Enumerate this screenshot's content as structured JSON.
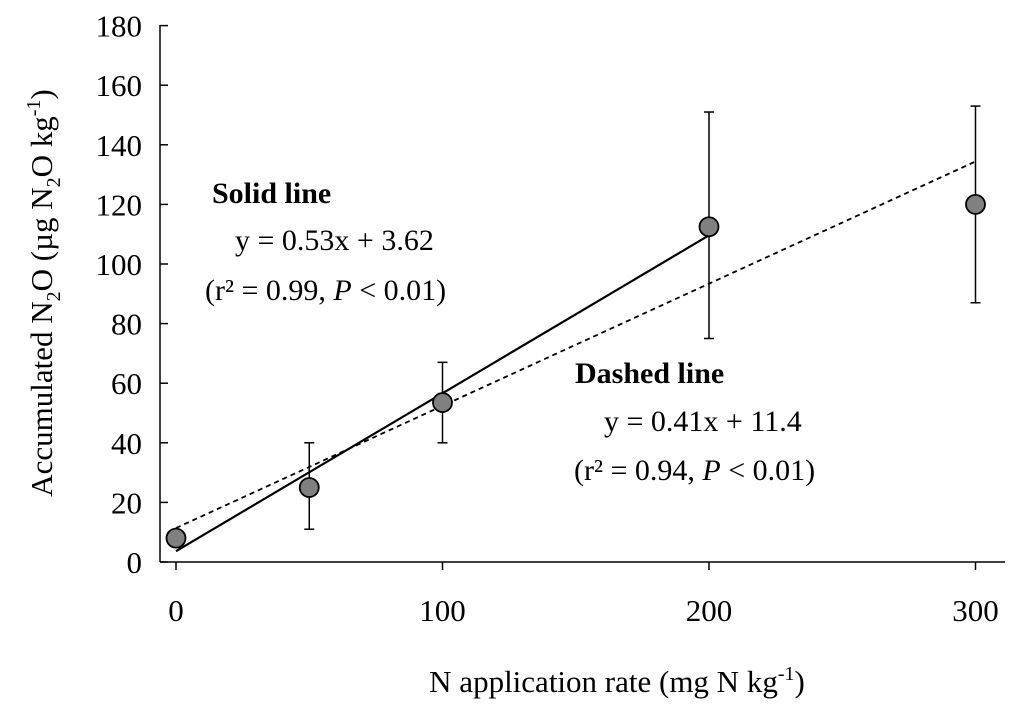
{
  "chart_data": {
    "type": "scatter",
    "xlabel": {
      "pre": "N application rate (mg N kg",
      "sup": "-1",
      "post": ")"
    },
    "ylabel": {
      "pre": "Accumulated N",
      "sub1": "2",
      "mid": "O (µg N",
      "sub2": "2",
      "mid2": "O kg",
      "sup": "-1",
      "post": ")"
    },
    "xlim": [
      0,
      310
    ],
    "ylim": [
      0,
      180
    ],
    "xticks": [
      0,
      100,
      200,
      300
    ],
    "xtick_labels": [
      "0",
      "100",
      "200",
      "300"
    ],
    "yticks": [
      0,
      20,
      40,
      60,
      80,
      100,
      120,
      140,
      160,
      180
    ],
    "ytick_labels": [
      "0",
      "20",
      "40",
      "60",
      "80",
      "100",
      "120",
      "140",
      "160",
      "180"
    ],
    "points": [
      {
        "x": 0,
        "y": 8,
        "err_low": 8,
        "err_high": 8
      },
      {
        "x": 50,
        "y": 25,
        "err_low": 11,
        "err_high": 40
      },
      {
        "x": 100,
        "y": 53.5,
        "err_low": 40,
        "err_high": 67
      },
      {
        "x": 200,
        "y": 112.5,
        "err_low": 75,
        "err_high": 151
      },
      {
        "x": 300,
        "y": 120,
        "err_low": 87,
        "err_high": 153
      }
    ],
    "solid_line": {
      "title": "Solid line",
      "equation": "y = 0.53x + 3.62",
      "stats_pre": "(r² = 0.99, ",
      "stats_p": "P",
      "stats_post": " < 0.01)",
      "slope": 0.53,
      "intercept": 3.62,
      "x_range": [
        0,
        200
      ]
    },
    "dashed_line": {
      "title": "Dashed line",
      "equation": "y = 0.41x + 11.4",
      "stats_pre": "(r² = 0.94, ",
      "stats_p": "P",
      "stats_post": " < 0.01)",
      "slope": 0.41,
      "intercept": 11.4,
      "x_range": [
        0,
        300
      ]
    },
    "colors": {
      "marker_fill": "#808080",
      "marker_stroke": "#000000",
      "line": "#000000"
    }
  }
}
